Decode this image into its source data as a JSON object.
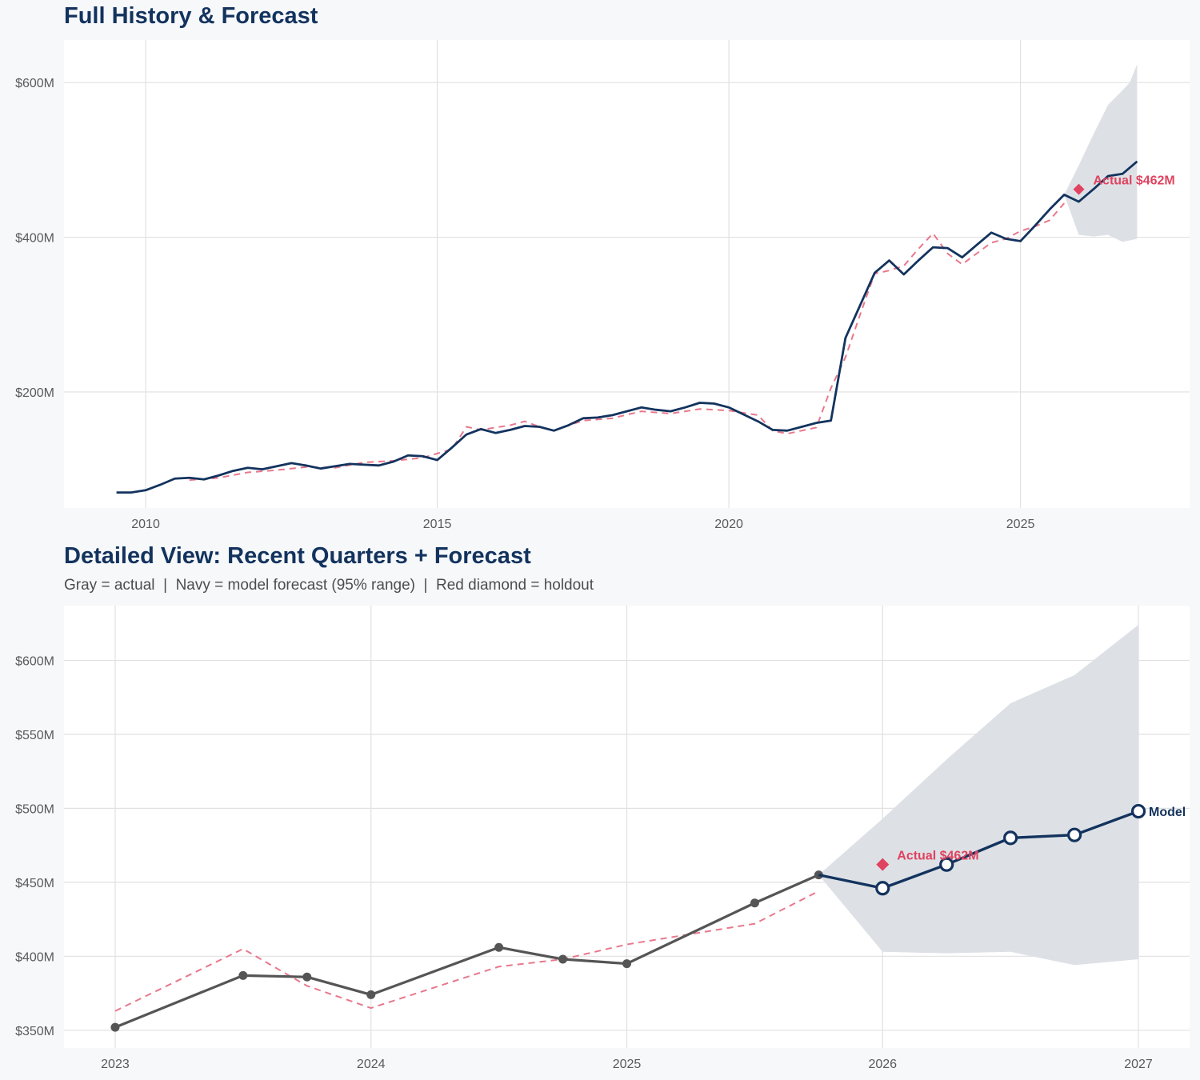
{
  "colors": {
    "page_bg": "#f7f8fa",
    "plot_bg": "#ffffff",
    "grid": "#e1e1e1",
    "title": "#13335e",
    "navy": "#13335e",
    "actual_gray": "#555555",
    "holdout_red": "#e0435f",
    "dashed_pink": "#e8788c",
    "band": "#dbdfe5"
  },
  "chart_data": [
    {
      "type": "line",
      "title": "Full History & Forecast",
      "xlabel": "",
      "ylabel": "",
      "x_ticks": [
        "2010",
        "2015",
        "2020",
        "2025"
      ],
      "y_ticks": [
        "$200M",
        "$400M",
        "$600M"
      ],
      "xlim": [
        2008.6,
        2027.9
      ],
      "ylim": [
        50,
        655
      ],
      "grid": true,
      "series": [
        {
          "style": "solid-navy",
          "points": [
            [
              2009.5,
              70
            ],
            [
              2009.75,
              70
            ],
            [
              2010.0,
              73
            ],
            [
              2010.25,
              80
            ],
            [
              2010.5,
              88
            ],
            [
              2010.75,
              89
            ],
            [
              2011.0,
              87
            ],
            [
              2011.25,
              92
            ],
            [
              2011.5,
              98
            ],
            [
              2011.75,
              102
            ],
            [
              2012.0,
              100
            ],
            [
              2012.25,
              104
            ],
            [
              2012.5,
              108
            ],
            [
              2012.75,
              105
            ],
            [
              2013.0,
              101
            ],
            [
              2013.25,
              104
            ],
            [
              2013.5,
              107
            ],
            [
              2013.75,
              106
            ],
            [
              2014.0,
              105
            ],
            [
              2014.25,
              110
            ],
            [
              2014.5,
              118
            ],
            [
              2014.75,
              117
            ],
            [
              2015.0,
              112
            ],
            [
              2015.25,
              128
            ],
            [
              2015.5,
              145
            ],
            [
              2015.75,
              152
            ],
            [
              2016.0,
              147
            ],
            [
              2016.25,
              151
            ],
            [
              2016.5,
              156
            ],
            [
              2016.75,
              155
            ],
            [
              2017.0,
              150
            ],
            [
              2017.25,
              157
            ],
            [
              2017.5,
              166
            ],
            [
              2017.75,
              167
            ],
            [
              2018.0,
              170
            ],
            [
              2018.25,
              175
            ],
            [
              2018.5,
              180
            ],
            [
              2018.75,
              177
            ],
            [
              2019.0,
              175
            ],
            [
              2019.25,
              180
            ],
            [
              2019.5,
              186
            ],
            [
              2019.75,
              185
            ],
            [
              2020.0,
              180
            ],
            [
              2020.25,
              171
            ],
            [
              2020.5,
              162
            ],
            [
              2020.75,
              151
            ],
            [
              2021.0,
              150
            ],
            [
              2021.25,
              155
            ],
            [
              2021.5,
              160
            ],
            [
              2021.75,
              163
            ],
            [
              2022.0,
              270
            ],
            [
              2022.25,
              312
            ],
            [
              2022.5,
              354
            ],
            [
              2022.75,
              370
            ],
            [
              2023.0,
              352
            ],
            [
              2023.25,
              370
            ],
            [
              2023.5,
              387
            ],
            [
              2023.75,
              386
            ],
            [
              2024.0,
              374
            ],
            [
              2024.25,
              390
            ],
            [
              2024.5,
              406
            ],
            [
              2024.75,
              398
            ],
            [
              2025.0,
              395
            ],
            [
              2025.25,
              415
            ],
            [
              2025.5,
              436
            ],
            [
              2025.75,
              455
            ],
            [
              2026.0,
              446
            ],
            [
              2026.25,
              462
            ],
            [
              2026.5,
              479
            ],
            [
              2026.75,
              482
            ],
            [
              2027.0,
              498
            ]
          ]
        },
        {
          "style": "dashed-red",
          "points": [
            [
              2010.75,
              86
            ],
            [
              2011.25,
              89
            ],
            [
              2011.75,
              96
            ],
            [
              2012.25,
              99
            ],
            [
              2012.75,
              103
            ],
            [
              2013.25,
              102
            ],
            [
              2013.75,
              109
            ],
            [
              2014.25,
              111
            ],
            [
              2014.75,
              115
            ],
            [
              2015.25,
              126
            ],
            [
              2015.5,
              155
            ],
            [
              2015.75,
              151
            ],
            [
              2016.25,
              157
            ],
            [
              2016.5,
              162
            ],
            [
              2016.75,
              155
            ],
            [
              2017.0,
              150
            ],
            [
              2017.5,
              163
            ],
            [
              2018.0,
              166
            ],
            [
              2018.5,
              175
            ],
            [
              2019.0,
              172
            ],
            [
              2019.5,
              178
            ],
            [
              2020.0,
              176
            ],
            [
              2020.5,
              170
            ],
            [
              2020.75,
              150
            ],
            [
              2021.0,
              146
            ],
            [
              2021.5,
              154
            ],
            [
              2021.75,
              205
            ],
            [
              2022.0,
              245
            ],
            [
              2022.25,
              300
            ],
            [
              2022.5,
              353
            ],
            [
              2022.75,
              357
            ],
            [
              2023.0,
              363
            ],
            [
              2023.25,
              385
            ],
            [
              2023.5,
              405
            ],
            [
              2023.75,
              379
            ],
            [
              2024.0,
              365
            ],
            [
              2024.25,
              379
            ],
            [
              2024.5,
              393
            ],
            [
              2024.75,
              398
            ],
            [
              2025.0,
              408
            ],
            [
              2025.25,
              414
            ],
            [
              2025.5,
              422
            ],
            [
              2025.75,
              444
            ]
          ]
        }
      ],
      "forecast_band": {
        "x": [
          2025.75,
          2026.0,
          2026.25,
          2026.5,
          2026.75,
          2026.875,
          2027.0
        ],
        "upper": [
          455,
          493,
          533,
          571,
          590,
          600,
          624
        ],
        "lower": [
          455,
          403,
          401,
          403,
          394,
          396,
          398
        ]
      },
      "holdout": {
        "x": 2026.0,
        "y": 462,
        "label": "Actual $462M"
      }
    },
    {
      "type": "line",
      "title": "Detailed View: Recent Quarters + Forecast",
      "subtitle": "Gray = actual  |  Navy = model forecast (95% range)  |  Red diamond = holdout",
      "xlabel": "",
      "ylabel": "",
      "x_ticks": [
        "2023",
        "2024",
        "2025",
        "2026",
        "2027"
      ],
      "y_ticks": [
        "$350M",
        "$400M",
        "$450M",
        "$500M",
        "$550M",
        "$600M"
      ],
      "xlim": [
        2022.8,
        2027.2
      ],
      "ylim": [
        338,
        637
      ],
      "grid": true,
      "series": [
        {
          "name": "actual",
          "style": "solid-gray-markers",
          "points": [
            [
              2023.0,
              352
            ],
            [
              2023.5,
              387
            ],
            [
              2023.75,
              386
            ],
            [
              2024.0,
              374
            ],
            [
              2024.5,
              406
            ],
            [
              2024.75,
              398
            ],
            [
              2025.0,
              395
            ],
            [
              2025.5,
              436
            ],
            [
              2025.75,
              455
            ]
          ]
        },
        {
          "name": "model forecast",
          "style": "solid-navy-open-markers",
          "points": [
            [
              2025.75,
              455
            ],
            [
              2026.0,
              446
            ],
            [
              2026.25,
              462
            ],
            [
              2026.5,
              480
            ],
            [
              2026.75,
              482
            ],
            [
              2027.0,
              498
            ]
          ],
          "end_label": "Model"
        },
        {
          "style": "dashed-red",
          "points": [
            [
              2023.0,
              363
            ],
            [
              2023.5,
              405
            ],
            [
              2023.75,
              380
            ],
            [
              2024.0,
              365
            ],
            [
              2024.5,
              393
            ],
            [
              2024.75,
              398
            ],
            [
              2025.0,
              408
            ],
            [
              2025.5,
              422
            ],
            [
              2025.75,
              444
            ]
          ]
        }
      ],
      "forecast_band": {
        "x": [
          2025.75,
          2026.0,
          2026.25,
          2026.5,
          2026.75,
          2027.0
        ],
        "upper": [
          455,
          493,
          533,
          571,
          590,
          624
        ],
        "lower": [
          455,
          403,
          402,
          403,
          394,
          398
        ]
      },
      "holdout": {
        "x": 2026.0,
        "y": 462,
        "label": "Actual $462M"
      }
    }
  ]
}
